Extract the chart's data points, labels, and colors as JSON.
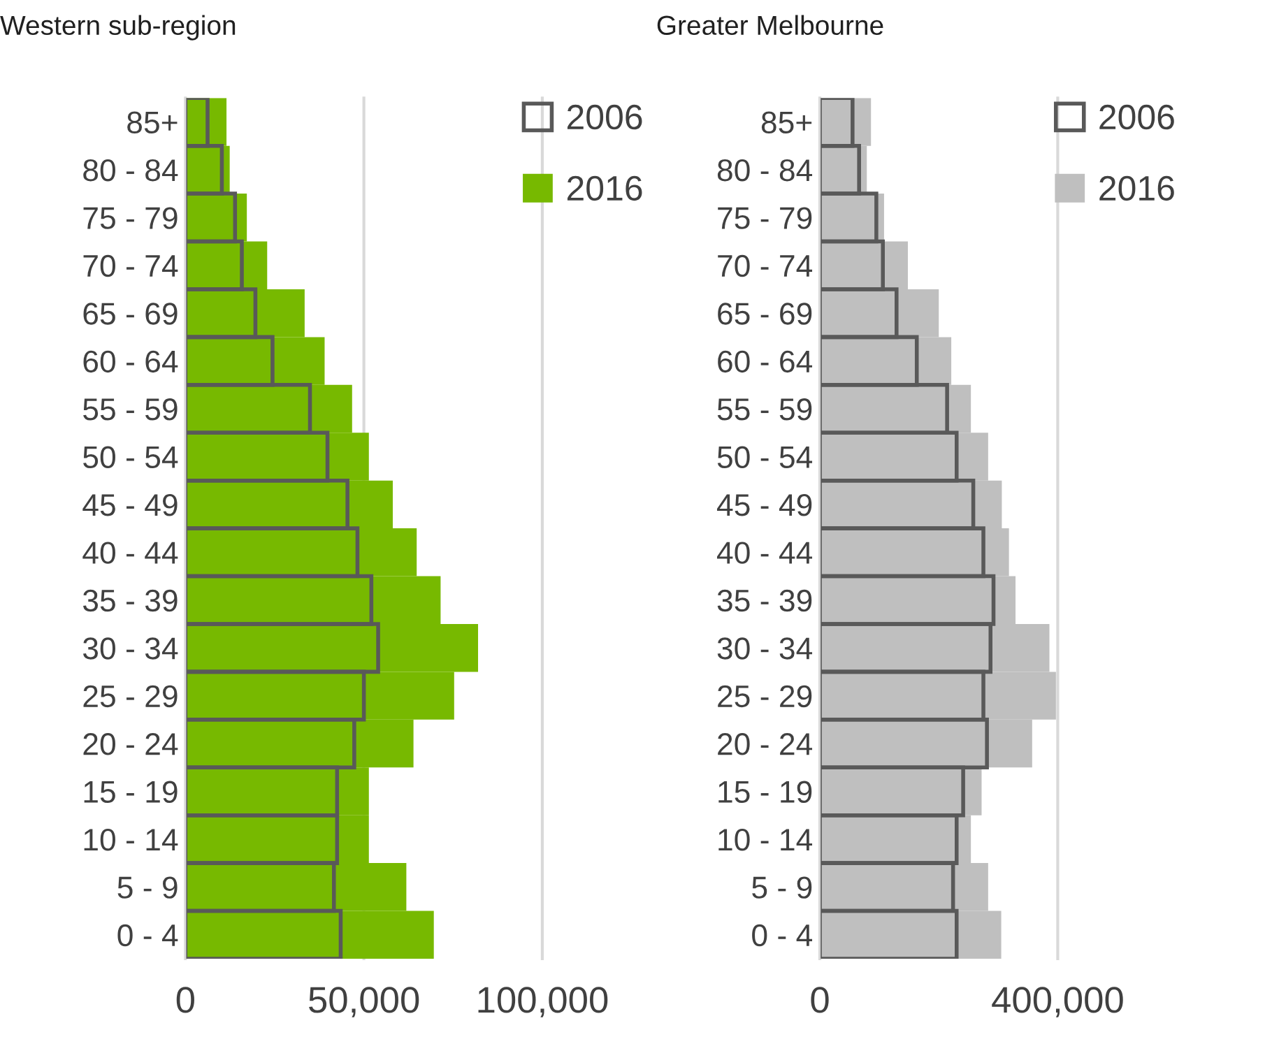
{
  "chart_data": [
    {
      "type": "bar",
      "orientation": "horizontal",
      "title": "Western sub-region",
      "categories": [
        "85+",
        "80 - 84",
        "75 - 79",
        "70 - 74",
        "65 - 69",
        "60 - 64",
        "55 - 59",
        "50 - 54",
        "45 - 49",
        "40 - 44",
        "35 - 39",
        "30 - 34",
        "25 - 29",
        "20 - 24",
        "15 - 19",
        "10 - 14",
        "5 - 9",
        "0 - 4"
      ],
      "series": [
        {
          "name": "2016",
          "color": "#77b900",
          "values": [
            11500,
            12400,
            17200,
            22900,
            33400,
            39000,
            46700,
            51400,
            58100,
            64800,
            71500,
            82000,
            75300,
            63900,
            51400,
            51400,
            61900,
            69600
          ]
        },
        {
          "name": "2006",
          "color": "#595959",
          "values": [
            6200,
            10200,
            13900,
            15800,
            19600,
            24400,
            34900,
            39800,
            45400,
            48200,
            52100,
            54000,
            50000,
            47300,
            42500,
            42500,
            41600,
            43500
          ]
        }
      ],
      "xlim": [
        0,
        100000
      ],
      "xticks": [
        0,
        {
          "value": 50000,
          "label": "50,000"
        },
        {
          "value": 100000,
          "label": "100,000"
        }
      ],
      "grid": "x",
      "legend": "top right"
    },
    {
      "type": "bar",
      "orientation": "horizontal",
      "title": "Greater Melbourne",
      "categories": [
        "85+",
        "80 - 84",
        "75 - 79",
        "70 - 74",
        "65 - 69",
        "60 - 64",
        "55 - 59",
        "50 - 54",
        "45 - 49",
        "40 - 44",
        "35 - 39",
        "30 - 34",
        "25 - 29",
        "20 - 24",
        "15 - 19",
        "10 - 14",
        "5 - 9",
        "0 - 4"
      ],
      "series": [
        {
          "name": "2016",
          "color": "#bfbfbf",
          "values": [
            86000,
            79000,
            108000,
            148000,
            200000,
            221000,
            254000,
            283000,
            306000,
            318000,
            329000,
            386000,
            397000,
            357000,
            272000,
            254000,
            283000,
            305000
          ]
        },
        {
          "name": "2006",
          "color": "#595959",
          "values": [
            55000,
            66000,
            95000,
            106000,
            129000,
            163000,
            214000,
            230000,
            258000,
            275000,
            292000,
            287000,
            275000,
            281000,
            241000,
            230000,
            224000,
            230000
          ]
        }
      ],
      "xlim": [
        0,
        400000
      ],
      "xticks": [
        0,
        {
          "value": 400000,
          "label": "400,000"
        }
      ],
      "grid": "x",
      "legend": "top right"
    }
  ]
}
